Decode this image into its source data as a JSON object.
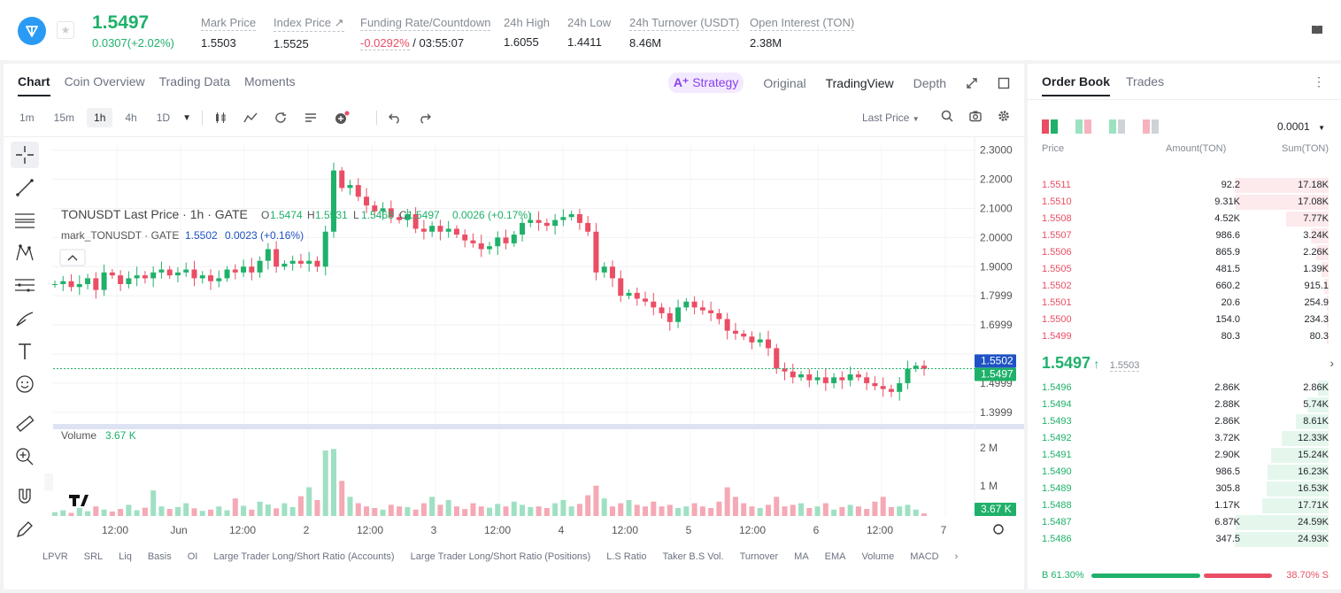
{
  "ticker": {
    "last_price": "1.5497",
    "change": "0.0307(+2.02%)",
    "fav_glyph": "★",
    "stats": [
      {
        "label": "Mark Price",
        "value": "1.5503"
      },
      {
        "label": "Index Price ↗",
        "value": "1.5525"
      },
      {
        "label": "Funding Rate/Countdown",
        "value_neg": "-0.0292%",
        "value": " / 03:55:07"
      },
      {
        "label": "24h High",
        "value": "1.6055"
      },
      {
        "label": "24h Low",
        "value": "1.4411"
      },
      {
        "label": "24h Turnover (USDT)",
        "value": "8.46M"
      },
      {
        "label": "Open Interest (TON)",
        "value": "2.38M"
      }
    ]
  },
  "chart_panel": {
    "tabs": [
      "Chart",
      "Coin Overview",
      "Trading Data",
      "Moments"
    ],
    "view_tabs": [
      "Strategy",
      "Original",
      "TradingView",
      "Depth"
    ],
    "strategy_glyph": "A⁺",
    "intervals": [
      "1m",
      "15m",
      "1h",
      "4h",
      "1D"
    ],
    "selected_interval": "1h",
    "price_type": "Last Price",
    "legend_main_title": "TONUSDT Last Price · 1h · GATE",
    "legend_main_values": [
      {
        "k": "O",
        "v": "1.5474"
      },
      {
        "k": "H",
        "v": "1.5531"
      },
      {
        "k": "L",
        "v": "1.5468"
      },
      {
        "k": "C",
        "v": "1.5497"
      }
    ],
    "legend_main_change": "0.0026 (+0.17%)",
    "legend_mark_title": "mark_TONUSDT · GATE",
    "legend_mark_value": "1.5502",
    "legend_mark_change": "0.0023 (+0.16%)",
    "volume_label": "Volume",
    "volume_value": "3.67 K",
    "bottom_indicators": [
      "LPVR",
      "SRL",
      "Liq",
      "Basis",
      "OI",
      "Large Trader Long/Short Ratio (Accounts)",
      "Large Trader Long/Short Ratio (Positions)",
      "L.S Ratio",
      "Taker B.S Vol.",
      "Turnover",
      "MA",
      "EMA",
      "Volume",
      "MACD"
    ]
  },
  "chart_data": {
    "type": "candlestick",
    "price_axis_ticks": [
      "2.3000",
      "2.2000",
      "2.1000",
      "2.0000",
      "1.9000",
      "1.7999",
      "1.6999",
      "1.4999",
      "1.3999"
    ],
    "volume_axis_ticks": [
      "2 M",
      "1 M"
    ],
    "time_axis_ticks": [
      "12:00",
      "Jun",
      "12:00",
      "2",
      "12:00",
      "3",
      "12:00",
      "4",
      "12:00",
      "5",
      "12:00",
      "6",
      "12:00",
      "7"
    ],
    "mark_price_tag": "1.5502",
    "last_price_tag": "1.5497",
    "volume_tag": "3.67 K",
    "ylim": [
      1.36,
      2.32
    ],
    "closes": [
      1.84,
      1.85,
      1.83,
      1.84,
      1.86,
      1.82,
      1.88,
      1.87,
      1.84,
      1.86,
      1.87,
      1.86,
      1.88,
      1.89,
      1.87,
      1.88,
      1.89,
      1.86,
      1.87,
      1.85,
      1.86,
      1.89,
      1.88,
      1.9,
      1.88,
      1.92,
      1.96,
      1.9,
      1.91,
      1.92,
      1.91,
      1.92,
      1.9,
      2.02,
      2.23,
      2.17,
      2.18,
      2.14,
      2.11,
      2.09,
      2.1,
      2.07,
      2.06,
      2.08,
      2.03,
      2.02,
      2.04,
      2.02,
      2.03,
      2.01,
      1.99,
      1.98,
      1.96,
      1.97,
      2.0,
      1.98,
      2.01,
      2.05,
      2.06,
      2.05,
      2.04,
      2.06,
      2.07,
      2.08,
      2.05,
      2.02,
      1.88,
      1.9,
      1.86,
      1.8,
      1.81,
      1.79,
      1.78,
      1.76,
      1.74,
      1.71,
      1.76,
      1.78,
      1.76,
      1.75,
      1.74,
      1.72,
      1.68,
      1.67,
      1.66,
      1.64,
      1.65,
      1.62,
      1.55,
      1.54,
      1.52,
      1.53,
      1.51,
      1.52,
      1.5,
      1.52,
      1.51,
      1.53,
      1.52,
      1.5,
      1.49,
      1.48,
      1.47,
      1.5,
      1.55,
      1.56,
      1.5497
    ],
    "volumes": [
      0.12,
      0.18,
      0.1,
      0.25,
      0.15,
      0.3,
      0.2,
      0.14,
      0.22,
      0.35,
      0.18,
      0.26,
      0.8,
      0.3,
      0.22,
      0.28,
      0.4,
      0.24,
      0.16,
      0.2,
      0.3,
      0.18,
      0.55,
      0.32,
      0.2,
      0.45,
      0.36,
      0.24,
      0.4,
      0.28,
      0.62,
      0.9,
      0.5,
      2.05,
      2.1,
      1.1,
      0.6,
      0.4,
      0.3,
      0.25,
      0.2,
      0.35,
      0.3,
      0.28,
      0.2,
      0.4,
      0.6,
      0.35,
      0.5,
      0.3,
      0.22,
      0.4,
      0.3,
      0.26,
      0.38,
      0.3,
      0.45,
      0.35,
      0.28,
      0.3,
      0.25,
      0.4,
      0.5,
      0.3,
      0.38,
      0.65,
      0.95,
      0.55,
      0.3,
      0.4,
      0.5,
      0.35,
      0.3,
      0.45,
      0.3,
      0.35,
      0.25,
      0.3,
      0.4,
      0.3,
      0.25,
      0.45,
      0.9,
      0.6,
      0.4,
      0.3,
      0.25,
      0.35,
      0.6,
      0.3,
      0.35,
      0.4,
      0.25,
      0.3,
      0.4,
      0.2,
      0.28,
      0.35,
      0.3,
      0.22,
      0.45,
      0.6,
      0.28,
      0.3,
      0.35,
      0.2,
      0.08
    ]
  },
  "orderbook": {
    "tabs": [
      "Order Book",
      "Trades"
    ],
    "kebab_glyph": "⋮",
    "precision": "0.0001",
    "headers": {
      "price": "Price",
      "amount": "Amount(TON)",
      "sum": "Sum(TON)"
    },
    "asks": [
      {
        "price": "1.5511",
        "amount": "92.2",
        "sum": "17.18K",
        "depth": 1.0
      },
      {
        "price": "1.5510",
        "amount": "9.31K",
        "sum": "17.08K",
        "depth": 0.99
      },
      {
        "price": "1.5508",
        "amount": "4.52K",
        "sum": "7.77K",
        "depth": 0.45
      },
      {
        "price": "1.5507",
        "amount": "986.6",
        "sum": "3.24K",
        "depth": 0.19
      },
      {
        "price": "1.5506",
        "amount": "865.9",
        "sum": "2.26K",
        "depth": 0.13
      },
      {
        "price": "1.5505",
        "amount": "481.5",
        "sum": "1.39K",
        "depth": 0.08
      },
      {
        "price": "1.5502",
        "amount": "660.2",
        "sum": "915.1",
        "depth": 0.05
      },
      {
        "price": "1.5501",
        "amount": "20.6",
        "sum": "254.9",
        "depth": 0.015
      },
      {
        "price": "1.5500",
        "amount": "154.0",
        "sum": "234.3",
        "depth": 0.014
      },
      {
        "price": "1.5499",
        "amount": "80.3",
        "sum": "80.3",
        "depth": 0.005
      }
    ],
    "mid_price": "1.5497",
    "mid_arrow": "↑",
    "mark_price": "1.5503",
    "bids": [
      {
        "price": "1.5496",
        "amount": "2.86K",
        "sum": "2.86K",
        "depth": 0.11
      },
      {
        "price": "1.5494",
        "amount": "2.88K",
        "sum": "5.74K",
        "depth": 0.23
      },
      {
        "price": "1.5493",
        "amount": "2.86K",
        "sum": "8.61K",
        "depth": 0.35
      },
      {
        "price": "1.5492",
        "amount": "3.72K",
        "sum": "12.33K",
        "depth": 0.5
      },
      {
        "price": "1.5491",
        "amount": "2.90K",
        "sum": "15.24K",
        "depth": 0.61
      },
      {
        "price": "1.5490",
        "amount": "986.5",
        "sum": "16.23K",
        "depth": 0.65
      },
      {
        "price": "1.5489",
        "amount": "305.8",
        "sum": "16.53K",
        "depth": 0.66
      },
      {
        "price": "1.5488",
        "amount": "1.17K",
        "sum": "17.71K",
        "depth": 0.71
      },
      {
        "price": "1.5487",
        "amount": "6.87K",
        "sum": "24.59K",
        "depth": 0.99
      },
      {
        "price": "1.5486",
        "amount": "347.5",
        "sum": "24.93K",
        "depth": 1.0
      }
    ],
    "buy_ratio_label": "B 61.30%",
    "sell_ratio_label": "38.70% S",
    "buy_ratio": 0.613
  },
  "colors": {
    "up": "#1fb16a",
    "down": "#ea4e64",
    "mark_line": "#1f52c4"
  }
}
